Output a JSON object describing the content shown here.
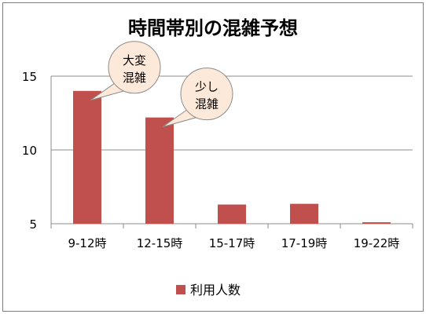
{
  "chart_data": {
    "type": "bar",
    "title": "時間帯別の混雑予想",
    "categories": [
      "9-12時",
      "12-15時",
      "15-17時",
      "17-19時",
      "19-22時"
    ],
    "series": [
      {
        "name": "利用人数",
        "values": [
          14,
          12.2,
          6.3,
          6.35,
          5.1
        ]
      }
    ],
    "ylim": [
      5,
      15
    ],
    "yticks": [
      5,
      10,
      15
    ],
    "grid": true,
    "legend": "bottom",
    "colors": {
      "bar": "#c0504d",
      "grid": "#8c8c8c",
      "callout_fill": "#fde9d9",
      "callout_stroke": "#8c8c8c"
    },
    "annotations": [
      {
        "text": "大変\n混雑",
        "category": "9-12時"
      },
      {
        "text": "少し\n混雑",
        "category": "12-15時"
      }
    ]
  }
}
